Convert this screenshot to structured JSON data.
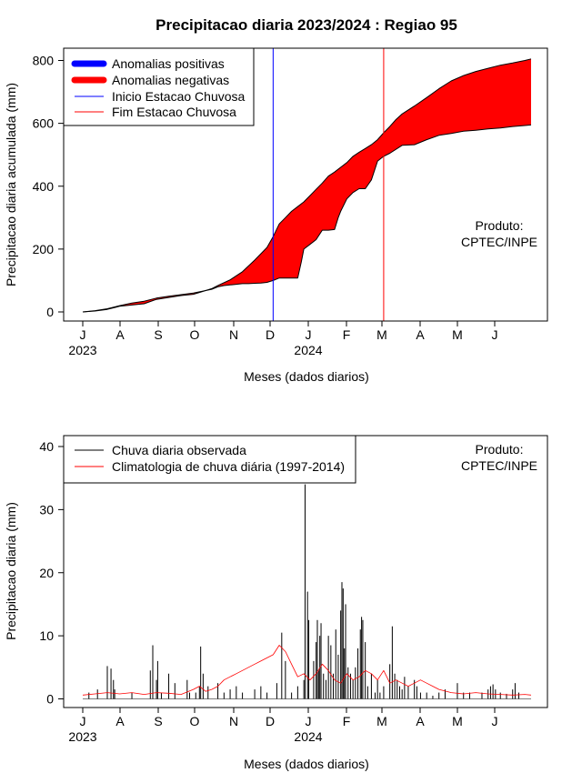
{
  "title": "Precipitacao diaria 2023/2024 : Regiao 95",
  "chart_data": [
    {
      "type": "area",
      "ylabel": "Precipitacao diaria acumulada (mm)",
      "xlabel": "Meses (dados diarios)",
      "x_range_days": [
        0,
        365
      ],
      "ylim": [
        0,
        800
      ],
      "yticks": [
        0,
        200,
        400,
        600,
        800
      ],
      "month_ticks": [
        "J",
        "A",
        "S",
        "O",
        "N",
        "D",
        "J",
        "F",
        "M",
        "A",
        "M",
        "J"
      ],
      "year_labels": [
        {
          "label": "2023",
          "month_index": 0
        },
        {
          "label": "2024",
          "month_index": 6
        }
      ],
      "legend": [
        "Anomalias positivas",
        "Anomalias negativas",
        "Inicio Estacao Chuvosa",
        "Fim Estacao Chuvosa"
      ],
      "legend_position": "top-left",
      "annotation": [
        "Produto:",
        "CPTEC/INPE"
      ],
      "colors": {
        "positive": "#0000ff",
        "negative": "#ff0000",
        "start": "#0000ff",
        "end": "#ff0000"
      },
      "rainy_season_start_day": 155,
      "rainy_season_end_day": 245,
      "observed_cumulative": [
        [
          0,
          0
        ],
        [
          10,
          3
        ],
        [
          20,
          8
        ],
        [
          30,
          18
        ],
        [
          40,
          22
        ],
        [
          50,
          26
        ],
        [
          60,
          40
        ],
        [
          70,
          46
        ],
        [
          80,
          52
        ],
        [
          90,
          56
        ],
        [
          95,
          62
        ],
        [
          100,
          68
        ],
        [
          105,
          72
        ],
        [
          110,
          80
        ],
        [
          115,
          84
        ],
        [
          120,
          86
        ],
        [
          125,
          88
        ],
        [
          130,
          90
        ],
        [
          135,
          90
        ],
        [
          140,
          91
        ],
        [
          145,
          92
        ],
        [
          150,
          94
        ],
        [
          155,
          100
        ],
        [
          160,
          108
        ],
        [
          170,
          108
        ],
        [
          175,
          108
        ],
        [
          178,
          160
        ],
        [
          180,
          200
        ],
        [
          185,
          215
        ],
        [
          190,
          230
        ],
        [
          195,
          260
        ],
        [
          200,
          260
        ],
        [
          205,
          262
        ],
        [
          208,
          300
        ],
        [
          210,
          320
        ],
        [
          215,
          360
        ],
        [
          220,
          380
        ],
        [
          225,
          392
        ],
        [
          230,
          392
        ],
        [
          235,
          420
        ],
        [
          240,
          480
        ],
        [
          245,
          495
        ],
        [
          250,
          505
        ],
        [
          260,
          530
        ],
        [
          270,
          532
        ],
        [
          280,
          548
        ],
        [
          290,
          562
        ],
        [
          300,
          568
        ],
        [
          310,
          575
        ],
        [
          320,
          578
        ],
        [
          330,
          582
        ],
        [
          340,
          585
        ],
        [
          350,
          590
        ],
        [
          360,
          593
        ],
        [
          365,
          595
        ]
      ],
      "climatology_cumulative": [
        [
          0,
          0
        ],
        [
          10,
          4
        ],
        [
          20,
          10
        ],
        [
          30,
          20
        ],
        [
          40,
          28
        ],
        [
          50,
          34
        ],
        [
          60,
          44
        ],
        [
          70,
          50
        ],
        [
          80,
          55
        ],
        [
          90,
          60
        ],
        [
          100,
          68
        ],
        [
          105,
          74
        ],
        [
          110,
          84
        ],
        [
          120,
          102
        ],
        [
          130,
          128
        ],
        [
          140,
          165
        ],
        [
          150,
          205
        ],
        [
          155,
          240
        ],
        [
          160,
          280
        ],
        [
          165,
          300
        ],
        [
          170,
          320
        ],
        [
          175,
          335
        ],
        [
          180,
          350
        ],
        [
          185,
          370
        ],
        [
          190,
          390
        ],
        [
          195,
          410
        ],
        [
          200,
          432
        ],
        [
          205,
          445
        ],
        [
          210,
          460
        ],
        [
          215,
          475
        ],
        [
          220,
          495
        ],
        [
          225,
          508
        ],
        [
          230,
          520
        ],
        [
          235,
          532
        ],
        [
          240,
          548
        ],
        [
          245,
          570
        ],
        [
          250,
          590
        ],
        [
          255,
          612
        ],
        [
          260,
          630
        ],
        [
          270,
          655
        ],
        [
          280,
          682
        ],
        [
          290,
          710
        ],
        [
          300,
          735
        ],
        [
          310,
          752
        ],
        [
          320,
          765
        ],
        [
          330,
          775
        ],
        [
          340,
          785
        ],
        [
          350,
          792
        ],
        [
          360,
          800
        ],
        [
          365,
          805
        ]
      ]
    },
    {
      "type": "bar",
      "ylabel": "Precipitacao diaria (mm)",
      "xlabel": "Meses (dados diarios)",
      "x_range_days": [
        0,
        365
      ],
      "ylim": [
        0,
        40
      ],
      "yticks": [
        0,
        10,
        20,
        30,
        40
      ],
      "month_ticks": [
        "J",
        "A",
        "S",
        "O",
        "N",
        "D",
        "J",
        "F",
        "M",
        "A",
        "M",
        "J"
      ],
      "year_labels": [
        {
          "label": "2023",
          "month_index": 0
        },
        {
          "label": "2024",
          "month_index": 6
        }
      ],
      "legend": [
        "Chuva diaria observada",
        "Climatologia de chuva diária (1997-2014)"
      ],
      "legend_position": "top-left",
      "annotation": [
        "Produto:",
        "CPTEC/INPE"
      ],
      "colors": {
        "observed": "#000000",
        "climatology": "#ff0000"
      },
      "observed_daily": [
        [
          5,
          1
        ],
        [
          12,
          1.5
        ],
        [
          20,
          5.2
        ],
        [
          23,
          4.8
        ],
        [
          25,
          3
        ],
        [
          26,
          1.5
        ],
        [
          40,
          1
        ],
        [
          55,
          4.5
        ],
        [
          57,
          8.5
        ],
        [
          60,
          3
        ],
        [
          61,
          6
        ],
        [
          64,
          1
        ],
        [
          70,
          4
        ],
        [
          75,
          2.5
        ],
        [
          85,
          3
        ],
        [
          87,
          1
        ],
        [
          92,
          1
        ],
        [
          95,
          2
        ],
        [
          96,
          8.3
        ],
        [
          98,
          4
        ],
        [
          102,
          2
        ],
        [
          110,
          2.5
        ],
        [
          115,
          1
        ],
        [
          120,
          1.5
        ],
        [
          125,
          2
        ],
        [
          130,
          1
        ],
        [
          140,
          1.5
        ],
        [
          145,
          2
        ],
        [
          150,
          1
        ],
        [
          158,
          2.5
        ],
        [
          162,
          10.5
        ],
        [
          165,
          6
        ],
        [
          170,
          1
        ],
        [
          175,
          2
        ],
        [
          180,
          3
        ],
        [
          181,
          34
        ],
        [
          183,
          17
        ],
        [
          184,
          12.5
        ],
        [
          188,
          6
        ],
        [
          190,
          9
        ],
        [
          191,
          12.5
        ],
        [
          192,
          4.5
        ],
        [
          193,
          10
        ],
        [
          194,
          12
        ],
        [
          196,
          4
        ],
        [
          198,
          3
        ],
        [
          200,
          10
        ],
        [
          202,
          8.5
        ],
        [
          204,
          4
        ],
        [
          206,
          11
        ],
        [
          208,
          7
        ],
        [
          210,
          14
        ],
        [
          211,
          18.5
        ],
        [
          212,
          17.5
        ],
        [
          213,
          8
        ],
        [
          214,
          15
        ],
        [
          216,
          5
        ],
        [
          218,
          4
        ],
        [
          220,
          3
        ],
        [
          222,
          5
        ],
        [
          224,
          8
        ],
        [
          226,
          11
        ],
        [
          227,
          13
        ],
        [
          228,
          12.5
        ],
        [
          230,
          9
        ],
        [
          232,
          2
        ],
        [
          235,
          4
        ],
        [
          238,
          1
        ],
        [
          240,
          3
        ],
        [
          242,
          1
        ],
        [
          245,
          2
        ],
        [
          250,
          5.5
        ],
        [
          252,
          11.5
        ],
        [
          254,
          4
        ],
        [
          256,
          3
        ],
        [
          258,
          2
        ],
        [
          260,
          1.5
        ],
        [
          262,
          3.5
        ],
        [
          265,
          2
        ],
        [
          270,
          3
        ],
        [
          272,
          2
        ],
        [
          275,
          1
        ],
        [
          280,
          1
        ],
        [
          285,
          0.5
        ],
        [
          290,
          1
        ],
        [
          295,
          1.5
        ],
        [
          305,
          2.5
        ],
        [
          310,
          1
        ],
        [
          315,
          1
        ],
        [
          325,
          1
        ],
        [
          330,
          1.5
        ],
        [
          332,
          2
        ],
        [
          334,
          2.3
        ],
        [
          336,
          1.5
        ],
        [
          340,
          1
        ],
        [
          345,
          0.8
        ],
        [
          350,
          1.5
        ],
        [
          352,
          2.5
        ],
        [
          355,
          1
        ]
      ],
      "climatology_daily": [
        [
          0,
          0.6
        ],
        [
          10,
          0.8
        ],
        [
          20,
          1
        ],
        [
          30,
          0.8
        ],
        [
          40,
          1
        ],
        [
          50,
          0.7
        ],
        [
          60,
          1
        ],
        [
          70,
          0.9
        ],
        [
          80,
          0.7
        ],
        [
          90,
          1.5
        ],
        [
          95,
          2
        ],
        [
          100,
          1.2
        ],
        [
          105,
          1.5
        ],
        [
          110,
          2
        ],
        [
          115,
          3
        ],
        [
          120,
          3.5
        ],
        [
          125,
          4
        ],
        [
          130,
          4.5
        ],
        [
          135,
          5
        ],
        [
          140,
          5.5
        ],
        [
          145,
          6
        ],
        [
          150,
          6.5
        ],
        [
          155,
          7
        ],
        [
          160,
          8.5
        ],
        [
          165,
          7.5
        ],
        [
          170,
          5.5
        ],
        [
          175,
          3.5
        ],
        [
          180,
          4
        ],
        [
          185,
          3
        ],
        [
          190,
          4
        ],
        [
          195,
          5.5
        ],
        [
          200,
          4.5
        ],
        [
          205,
          3
        ],
        [
          210,
          2.5
        ],
        [
          215,
          4
        ],
        [
          220,
          3
        ],
        [
          225,
          3.5
        ],
        [
          230,
          4.5
        ],
        [
          235,
          4
        ],
        [
          240,
          3
        ],
        [
          245,
          4.5
        ],
        [
          250,
          2.5
        ],
        [
          255,
          3
        ],
        [
          260,
          2.5
        ],
        [
          265,
          2
        ],
        [
          270,
          2.5
        ],
        [
          275,
          3
        ],
        [
          280,
          2.5
        ],
        [
          285,
          2
        ],
        [
          290,
          1.5
        ],
        [
          300,
          1
        ],
        [
          310,
          0.8
        ],
        [
          320,
          1
        ],
        [
          330,
          0.8
        ],
        [
          340,
          0.7
        ],
        [
          350,
          0.6
        ],
        [
          360,
          0.7
        ],
        [
          365,
          0.6
        ]
      ]
    }
  ]
}
